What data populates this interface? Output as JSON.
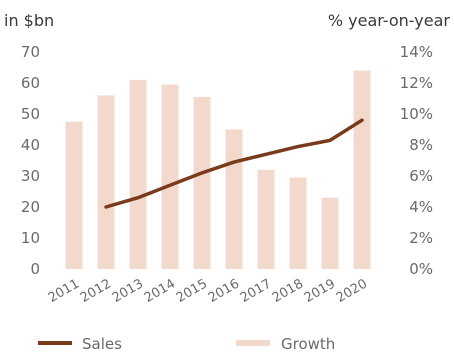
{
  "chart_data": {
    "type": "bar",
    "categories": [
      "2011",
      "2012",
      "2013",
      "2014",
      "2015",
      "2016",
      "2017",
      "2018",
      "2019",
      "2020"
    ],
    "series": [
      {
        "name": "Sales",
        "type": "line",
        "axis": "left",
        "color": "#7a3a1c",
        "values": [
          null,
          20,
          23,
          27,
          31,
          34.5,
          37,
          39.5,
          41.5,
          48
        ]
      },
      {
        "name": "Growth",
        "type": "bar",
        "axis": "right",
        "color": "#f3d9cc",
        "values": [
          9.5,
          11.2,
          12.2,
          11.9,
          11.1,
          9.0,
          6.4,
          5.9,
          4.6,
          12.8
        ]
      }
    ],
    "left_axis": {
      "label": "in $bn",
      "range": [
        0,
        70
      ],
      "ticks": [
        "0",
        "10",
        "20",
        "30",
        "40",
        "50",
        "60",
        "70"
      ]
    },
    "right_axis": {
      "label": "% year-on-year",
      "range": [
        0,
        14
      ],
      "ticks": [
        "0%",
        "2%",
        "4%",
        "6%",
        "8%",
        "10%",
        "12%",
        "14%"
      ]
    },
    "grid": false,
    "legend_position": "bottom"
  }
}
